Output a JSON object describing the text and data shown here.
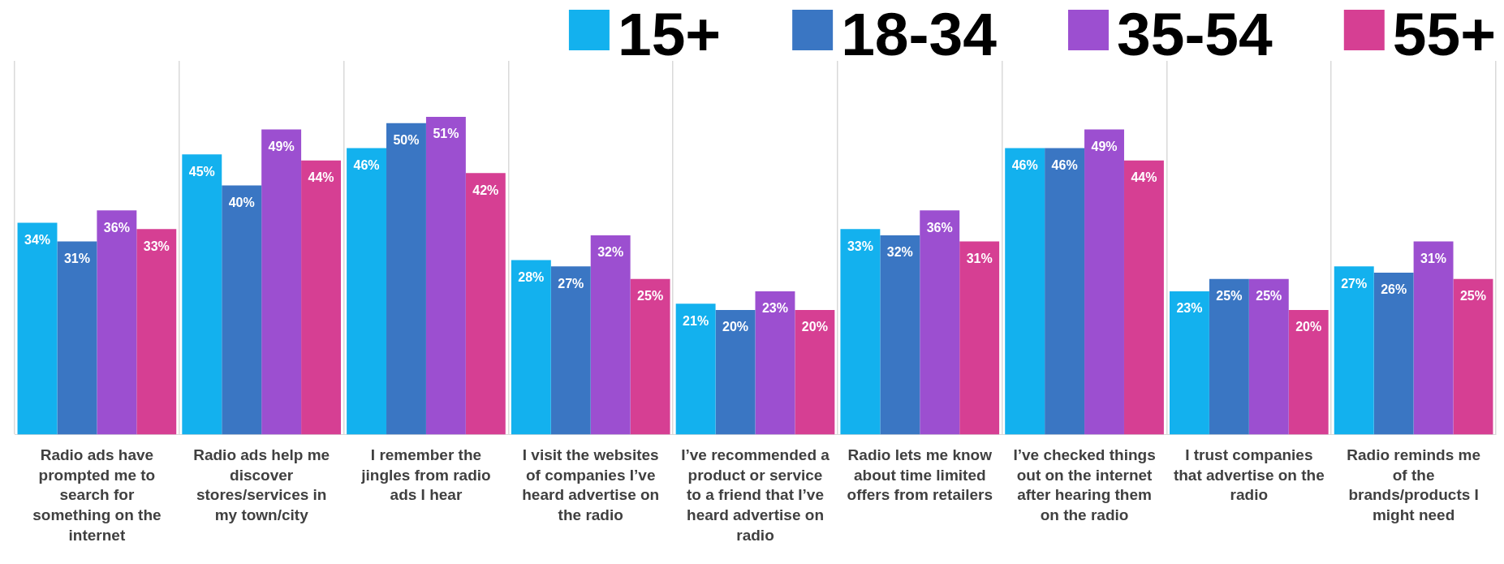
{
  "chart_data": {
    "type": "bar",
    "categories": [
      "Radio ads have prompted me to search for something on the internet",
      "Radio ads help me discover stores/services in my town/city",
      "I remember the jingles from radio ads I hear",
      "I visit the websites of companies I’ve heard advertise on the radio",
      "I’ve recommended a product or service to a friend that I’ve heard advertise on radio",
      "Radio lets me know about time limited offers from retailers",
      "I’ve checked things out on the internet after hearing them on the radio",
      "I trust companies that advertise on the radio",
      "Radio reminds me of the brands/products I might need"
    ],
    "series": [
      {
        "name": "15+",
        "color": "#13b1ee",
        "values": [
          34,
          45,
          46,
          28,
          21,
          33,
          46,
          23,
          27
        ],
        "value_labels": [
          "34%",
          "45%",
          "46%",
          "28%",
          "21%",
          "33%",
          "46%",
          "23%",
          "27%"
        ]
      },
      {
        "name": "18-34",
        "color": "#3a76c3",
        "values": [
          31,
          40,
          50,
          27,
          20,
          32,
          46,
          25,
          26
        ],
        "value_labels": [
          "31%",
          "40%",
          "50%",
          "27%",
          "20%",
          "32%",
          "46%",
          "25%",
          "26%"
        ]
      },
      {
        "name": "35-54",
        "color": "#9c4fd0",
        "values": [
          36,
          49,
          51,
          32,
          23,
          36,
          49,
          25,
          31
        ],
        "value_labels": [
          "36%",
          "49%",
          "51%",
          "32%",
          "23%",
          "36%",
          "49%",
          "25%",
          "31%"
        ]
      },
      {
        "name": "55+",
        "color": "#d63f93",
        "values": [
          33,
          44,
          42,
          25,
          20,
          31,
          44,
          20,
          25
        ],
        "value_labels": [
          "33%",
          "44%",
          "42%",
          "25%",
          "20%",
          "31%",
          "44%",
          "20%",
          "25%"
        ]
      }
    ],
    "ylim": [
      0,
      60
    ],
    "tick_labels": "x",
    "grid": "x",
    "legend": "top right"
  }
}
